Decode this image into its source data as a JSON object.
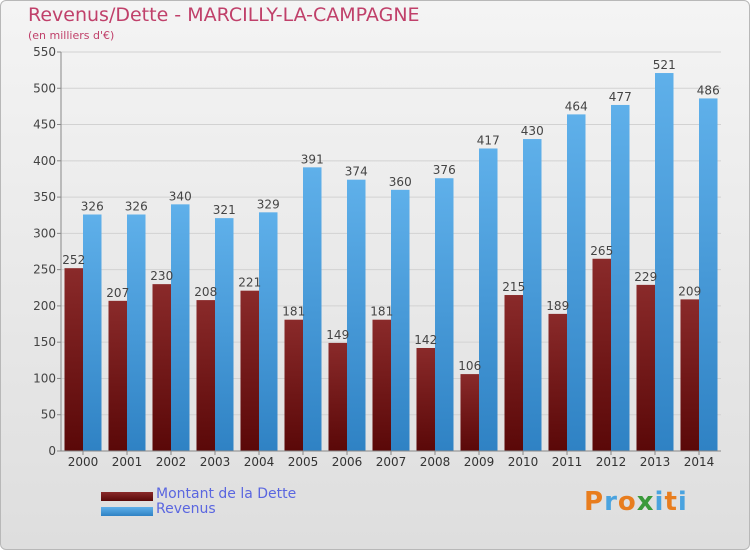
{
  "title": "Revenus/Dette - MARCILLY-LA-CAMPAGNE",
  "subtitle": "(en milliers d'€)",
  "legend": [
    {
      "label": "Montant de la Dette",
      "color": "#7a1a1a"
    },
    {
      "label": "Revenus",
      "color": "#4ea6e4"
    }
  ],
  "logo": {
    "text": "Proxiti",
    "letters": [
      "P",
      "r",
      "o",
      "x",
      "i",
      "t",
      "i"
    ],
    "colors": [
      "#e87d1e",
      "#4aa3df",
      "#e87d1e",
      "#3a9a3a",
      "#4aa3df",
      "#e87d1e",
      "#4aa3df"
    ]
  },
  "chart_data": {
    "type": "bar",
    "title": "Revenus/Dette - MARCILLY-LA-CAMPAGNE",
    "subtitle": "(en milliers d'€)",
    "categories": [
      "2000",
      "2001",
      "2002",
      "2003",
      "2004",
      "2005",
      "2006",
      "2007",
      "2008",
      "2009",
      "2010",
      "2011",
      "2012",
      "2013",
      "2014"
    ],
    "series": [
      {
        "name": "Montant de la Dette",
        "color": "#7a1a1a",
        "values": [
          252,
          207,
          230,
          208,
          221,
          181,
          149,
          181,
          142,
          106,
          215,
          189,
          265,
          229,
          209
        ]
      },
      {
        "name": "Revenus",
        "color": "#4ea6e4",
        "values": [
          326,
          326,
          340,
          321,
          329,
          391,
          374,
          360,
          376,
          417,
          430,
          464,
          477,
          521,
          486
        ]
      }
    ],
    "ylim": [
      0,
      550
    ],
    "yticks": [
      0,
      50,
      100,
      150,
      200,
      250,
      300,
      350,
      400,
      450,
      500,
      550
    ],
    "grid": true,
    "legend_position": "bottom-left"
  }
}
